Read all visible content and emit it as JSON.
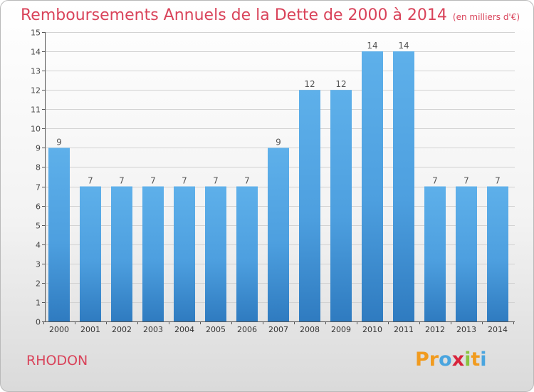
{
  "chart_data": {
    "type": "bar",
    "title": "Remboursements Annuels de la Dette de 2000 à 2014",
    "subtitle": "(en milliers d'€)",
    "categories": [
      "2000",
      "2001",
      "2002",
      "2003",
      "2004",
      "2005",
      "2006",
      "2007",
      "2008",
      "2009",
      "2010",
      "2011",
      "2012",
      "2013",
      "2014"
    ],
    "values": [
      9,
      7,
      7,
      7,
      7,
      7,
      7,
      9,
      12,
      12,
      14,
      14,
      7,
      7,
      7
    ],
    "ylim": [
      0,
      15
    ],
    "yticks": [
      0,
      1,
      2,
      3,
      4,
      5,
      6,
      7,
      8,
      9,
      10,
      11,
      12,
      13,
      14,
      15
    ],
    "xlabel": "",
    "ylabel": "",
    "grid": true,
    "bar_color": "#4d9fdf",
    "bar_color_light": "#5eb0ea",
    "bar_color_dark": "#2f7bc0"
  },
  "footer": {
    "commune": "RHODON",
    "logo_text": [
      "P",
      "r",
      "o",
      "x",
      "i",
      "t",
      "i"
    ],
    "logo_colors": [
      "#f19b1f",
      "#f19b1f",
      "#4aa5df",
      "#d8243c",
      "#8ac43f",
      "#f19b1f",
      "#4aa5df"
    ]
  },
  "colors": {
    "accent": "#d9435a"
  }
}
